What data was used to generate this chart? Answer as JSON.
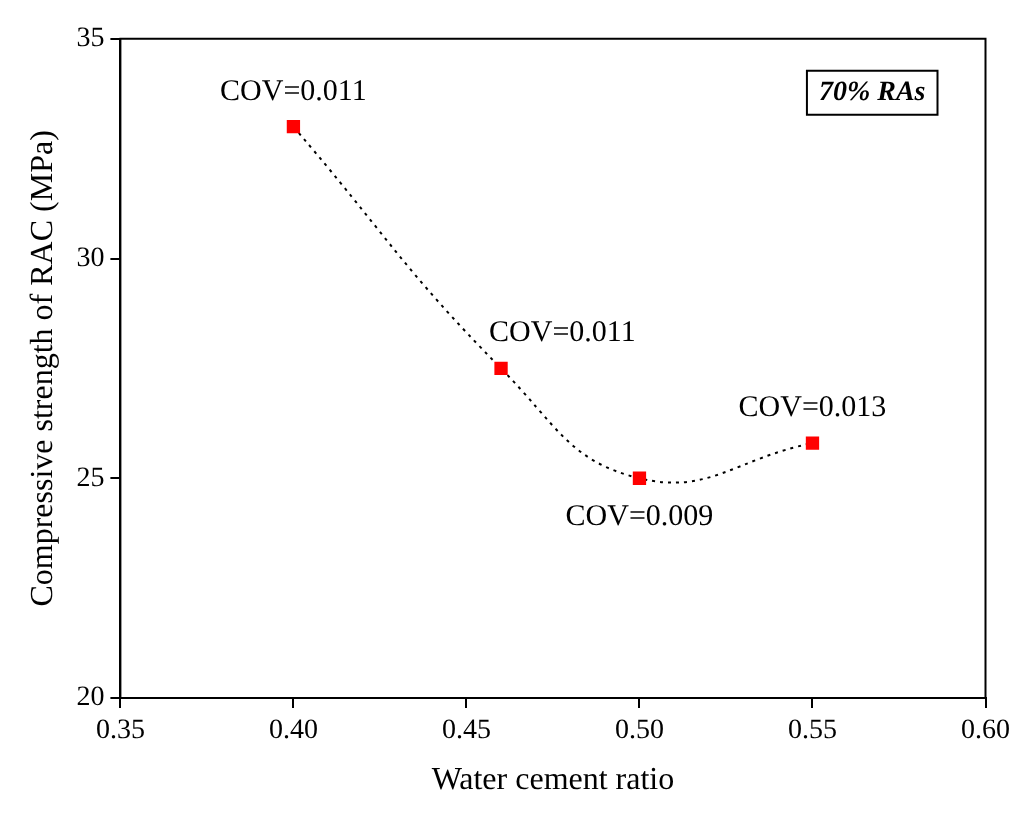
{
  "chart_data": {
    "type": "line",
    "xlabel": "Water cement ratio",
    "ylabel": "Compressive strength of RAC (MPa)",
    "x": [
      0.4,
      0.46,
      0.5,
      0.55
    ],
    "series": [
      {
        "color": "#ff0000",
        "values": [
          33.0,
          27.5,
          25.0,
          25.8
        ]
      }
    ],
    "marker": "square",
    "line_style": "dotted",
    "grid": false,
    "legend": false,
    "xlim": [
      0.35,
      0.6
    ],
    "xticks": [
      0.35,
      {
        "value": 0.4,
        "label": "0.40"
      },
      0.45,
      {
        "value": 0.5,
        "label": "0.50"
      },
      0.55,
      {
        "value": 0.6,
        "label": "0.60"
      }
    ],
    "ylim": [
      20,
      35
    ],
    "yticks": [
      20,
      25,
      30,
      35
    ],
    "annotations": [
      {
        "text": "COV=0.011",
        "x": 0.4,
        "y": 33.0
      },
      {
        "text": "COV=0.011",
        "x": 0.46,
        "y": 27.5
      },
      {
        "text": "COV=0.009",
        "x": 0.5,
        "y": 25.0
      },
      {
        "text": "COV=0.013",
        "x": 0.55,
        "y": 25.8
      },
      "70% RAs"
    ]
  }
}
